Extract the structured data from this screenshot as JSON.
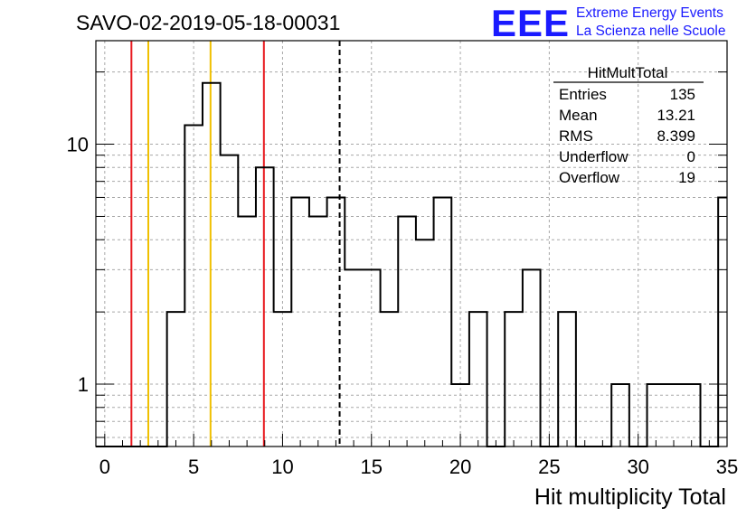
{
  "header": {
    "run_title": "SAVO-02-2019-05-18-00031",
    "logo_text": "EEE",
    "logo_line1": "Extreme Energy Events",
    "logo_line2": "La Scienza nelle Scuole"
  },
  "stats_box": {
    "title": "HitMultTotal",
    "rows": [
      {
        "label": "Entries",
        "value": "135"
      },
      {
        "label": "Mean",
        "value": "13.21"
      },
      {
        "label": "RMS",
        "value": "8.399"
      },
      {
        "label": "Underflow",
        "value": "0"
      },
      {
        "label": "Overflow",
        "value": "19"
      }
    ]
  },
  "chart_data": {
    "type": "histogram",
    "xlabel": "Hit multiplicity Total",
    "ylabel": "",
    "xlim": [
      -0.5,
      35
    ],
    "ylim": [
      0.55,
      27
    ],
    "log_y": true,
    "grid": true,
    "x_ticks": [
      0,
      5,
      10,
      15,
      20,
      25,
      30,
      35
    ],
    "y_ticks": [
      1,
      10
    ],
    "bin_width": 1,
    "bins": [
      {
        "x0": -0.5,
        "value": 0
      },
      {
        "x0": 0.5,
        "value": 0
      },
      {
        "x0": 1.5,
        "value": 0
      },
      {
        "x0": 2.5,
        "value": 0
      },
      {
        "x0": 3.5,
        "value": 2
      },
      {
        "x0": 4.5,
        "value": 12
      },
      {
        "x0": 5.5,
        "value": 18
      },
      {
        "x0": 6.5,
        "value": 9
      },
      {
        "x0": 7.5,
        "value": 5
      },
      {
        "x0": 8.5,
        "value": 8
      },
      {
        "x0": 9.5,
        "value": 2
      },
      {
        "x0": 10.5,
        "value": 6
      },
      {
        "x0": 11.5,
        "value": 5
      },
      {
        "x0": 12.5,
        "value": 6
      },
      {
        "x0": 13.5,
        "value": 3
      },
      {
        "x0": 14.5,
        "value": 3
      },
      {
        "x0": 15.5,
        "value": 2
      },
      {
        "x0": 16.5,
        "value": 5
      },
      {
        "x0": 17.5,
        "value": 4
      },
      {
        "x0": 18.5,
        "value": 6
      },
      {
        "x0": 19.5,
        "value": 1
      },
      {
        "x0": 20.5,
        "value": 2
      },
      {
        "x0": 21.5,
        "value": 0
      },
      {
        "x0": 22.5,
        "value": 2
      },
      {
        "x0": 23.5,
        "value": 3
      },
      {
        "x0": 24.5,
        "value": 0
      },
      {
        "x0": 25.5,
        "value": 2
      },
      {
        "x0": 26.5,
        "value": 0
      },
      {
        "x0": 27.5,
        "value": 0
      },
      {
        "x0": 28.5,
        "value": 1
      },
      {
        "x0": 29.5,
        "value": 0
      },
      {
        "x0": 30.5,
        "value": 1
      },
      {
        "x0": 31.5,
        "value": 1
      },
      {
        "x0": 32.5,
        "value": 1
      },
      {
        "x0": 33.5,
        "value": 0
      },
      {
        "x0": 34.5,
        "value": 6
      }
    ],
    "reference_lines": [
      {
        "x": 1.5,
        "color": "#e8191f",
        "style": "solid"
      },
      {
        "x": 2.45,
        "color": "#f0c000",
        "style": "solid"
      },
      {
        "x": 5.95,
        "color": "#f0c000",
        "style": "solid"
      },
      {
        "x": 8.95,
        "color": "#e8191f",
        "style": "solid"
      },
      {
        "x": 13.21,
        "color": "#000000",
        "style": "dashed"
      }
    ],
    "colors": {
      "histogram": "#000000",
      "grid": "#a8a8a8",
      "logo": "#1a1aff"
    }
  }
}
